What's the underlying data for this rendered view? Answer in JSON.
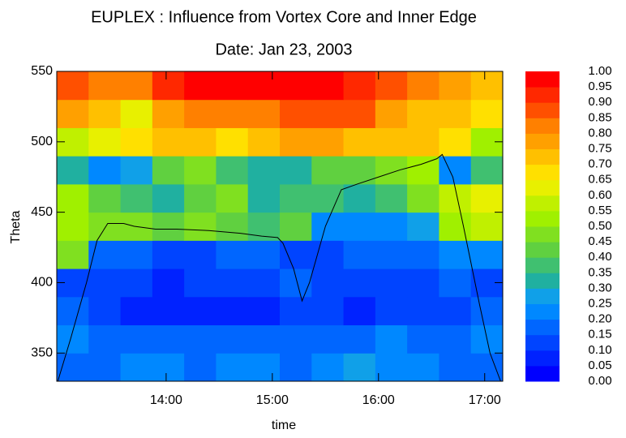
{
  "chart_data": {
    "type": "heatmap",
    "title": "EUPLEX : Influence from Vortex Core and Inner Edge",
    "subtitle": "Date: Jan 23, 2003",
    "xlabel": "time",
    "ylabel": "Theta",
    "xlim": [
      12.97,
      17.17
    ],
    "ylim": [
      330,
      550
    ],
    "xticks": [
      {
        "value": 14,
        "label": "14:00"
      },
      {
        "value": 15,
        "label": "15:00"
      },
      {
        "value": 16,
        "label": "16:00"
      },
      {
        "value": 17,
        "label": "17:00"
      }
    ],
    "yticks": [
      350,
      400,
      450,
      500,
      550
    ],
    "x_edges": [
      12.97,
      13.27,
      13.57,
      13.87,
      14.17,
      14.47,
      14.77,
      15.07,
      15.37,
      15.67,
      15.97,
      16.27,
      16.57,
      16.87,
      17.17
    ],
    "y_edges": [
      330,
      350,
      370,
      390,
      410,
      430,
      450,
      470,
      490,
      510,
      530,
      550
    ],
    "z": [
      [
        0.15,
        0.18,
        0.2,
        0.2,
        0.18,
        0.2,
        0.2,
        0.15,
        0.2,
        0.25,
        0.2,
        0.2,
        0.18,
        0.15
      ],
      [
        0.2,
        0.15,
        0.15,
        0.15,
        0.18,
        0.15,
        0.15,
        0.15,
        0.15,
        0.15,
        0.2,
        0.15,
        0.18,
        0.2
      ],
      [
        0.15,
        0.1,
        0.08,
        0.05,
        0.08,
        0.05,
        0.08,
        0.1,
        0.1,
        0.08,
        0.1,
        0.12,
        0.1,
        0.15
      ],
      [
        0.12,
        0.12,
        0.1,
        0.08,
        0.1,
        0.1,
        0.1,
        0.15,
        0.1,
        0.12,
        0.1,
        0.12,
        0.15,
        0.12
      ],
      [
        0.45,
        0.15,
        0.15,
        0.12,
        0.12,
        0.15,
        0.15,
        0.12,
        0.12,
        0.15,
        0.15,
        0.15,
        0.2,
        0.2
      ],
      [
        0.5,
        0.45,
        0.45,
        0.4,
        0.45,
        0.4,
        0.35,
        0.4,
        0.2,
        0.2,
        0.2,
        0.25,
        0.5,
        0.55
      ],
      [
        0.5,
        0.4,
        0.35,
        0.3,
        0.4,
        0.45,
        0.3,
        0.35,
        0.35,
        0.3,
        0.35,
        0.45,
        0.55,
        0.6
      ],
      [
        0.3,
        0.2,
        0.25,
        0.4,
        0.45,
        0.35,
        0.3,
        0.3,
        0.4,
        0.4,
        0.45,
        0.5,
        0.2,
        0.35
      ],
      [
        0.55,
        0.6,
        0.65,
        0.7,
        0.7,
        0.65,
        0.7,
        0.75,
        0.75,
        0.7,
        0.7,
        0.7,
        0.65,
        0.5
      ],
      [
        0.75,
        0.7,
        0.6,
        0.75,
        0.8,
        0.8,
        0.8,
        0.85,
        0.85,
        0.85,
        0.75,
        0.7,
        0.7,
        0.65
      ],
      [
        0.85,
        0.8,
        0.8,
        0.9,
        0.95,
        0.95,
        0.95,
        0.95,
        0.95,
        0.9,
        0.85,
        0.8,
        0.75,
        0.7
      ]
    ],
    "colors": [
      "#0000ff",
      "#0022ff",
      "#0044ff",
      "#0066ff",
      "#0088ff",
      "#10a0e8",
      "#20b0a0",
      "#40c070",
      "#60d040",
      "#80e020",
      "#a0f000",
      "#c0f000",
      "#e8f000",
      "#ffe000",
      "#ffc000",
      "#ffa000",
      "#ff8000",
      "#ff5000",
      "#ff2800",
      "#ff0000"
    ],
    "colorbar_ticks": [
      {
        "value": 0,
        "label": "0.00"
      },
      {
        "value": 0.05,
        "label": "0.05"
      },
      {
        "value": 0.1,
        "label": "0.10"
      },
      {
        "value": 0.15,
        "label": "0.15"
      },
      {
        "value": 0.2,
        "label": "0.20"
      },
      {
        "value": 0.25,
        "label": "0.25"
      },
      {
        "value": 0.3,
        "label": "0.30"
      },
      {
        "value": 0.35,
        "label": "0.35"
      },
      {
        "value": 0.4,
        "label": "0.40"
      },
      {
        "value": 0.45,
        "label": "0.45"
      },
      {
        "value": 0.5,
        "label": "0.50"
      },
      {
        "value": 0.55,
        "label": "0.55"
      },
      {
        "value": 0.6,
        "label": "0.60"
      },
      {
        "value": 0.65,
        "label": "0.65"
      },
      {
        "value": 0.7,
        "label": "0.70"
      },
      {
        "value": 0.75,
        "label": "0.75"
      },
      {
        "value": 0.8,
        "label": "0.80"
      },
      {
        "value": 0.85,
        "label": "0.85"
      },
      {
        "value": 0.9,
        "label": "0.90"
      },
      {
        "value": 0.95,
        "label": "0.95"
      },
      {
        "value": 1,
        "label": "1.00"
      }
    ],
    "line": {
      "color": "#000000",
      "x": [
        12.98,
        13.1,
        13.25,
        13.35,
        13.45,
        13.6,
        13.7,
        13.9,
        14.1,
        14.4,
        14.7,
        14.9,
        15.05,
        15.1,
        15.2,
        15.28,
        15.35,
        15.5,
        15.65,
        15.8,
        16.0,
        16.2,
        16.4,
        16.55,
        16.6,
        16.7,
        16.8,
        16.95,
        17.05,
        17.15
      ],
      "y": [
        330,
        360,
        400,
        430,
        442,
        442,
        440,
        438,
        438,
        437,
        435,
        433,
        432,
        428,
        410,
        387,
        400,
        440,
        466,
        470,
        475,
        480,
        484,
        488,
        491,
        475,
        440,
        385,
        350,
        330
      ]
    }
  }
}
